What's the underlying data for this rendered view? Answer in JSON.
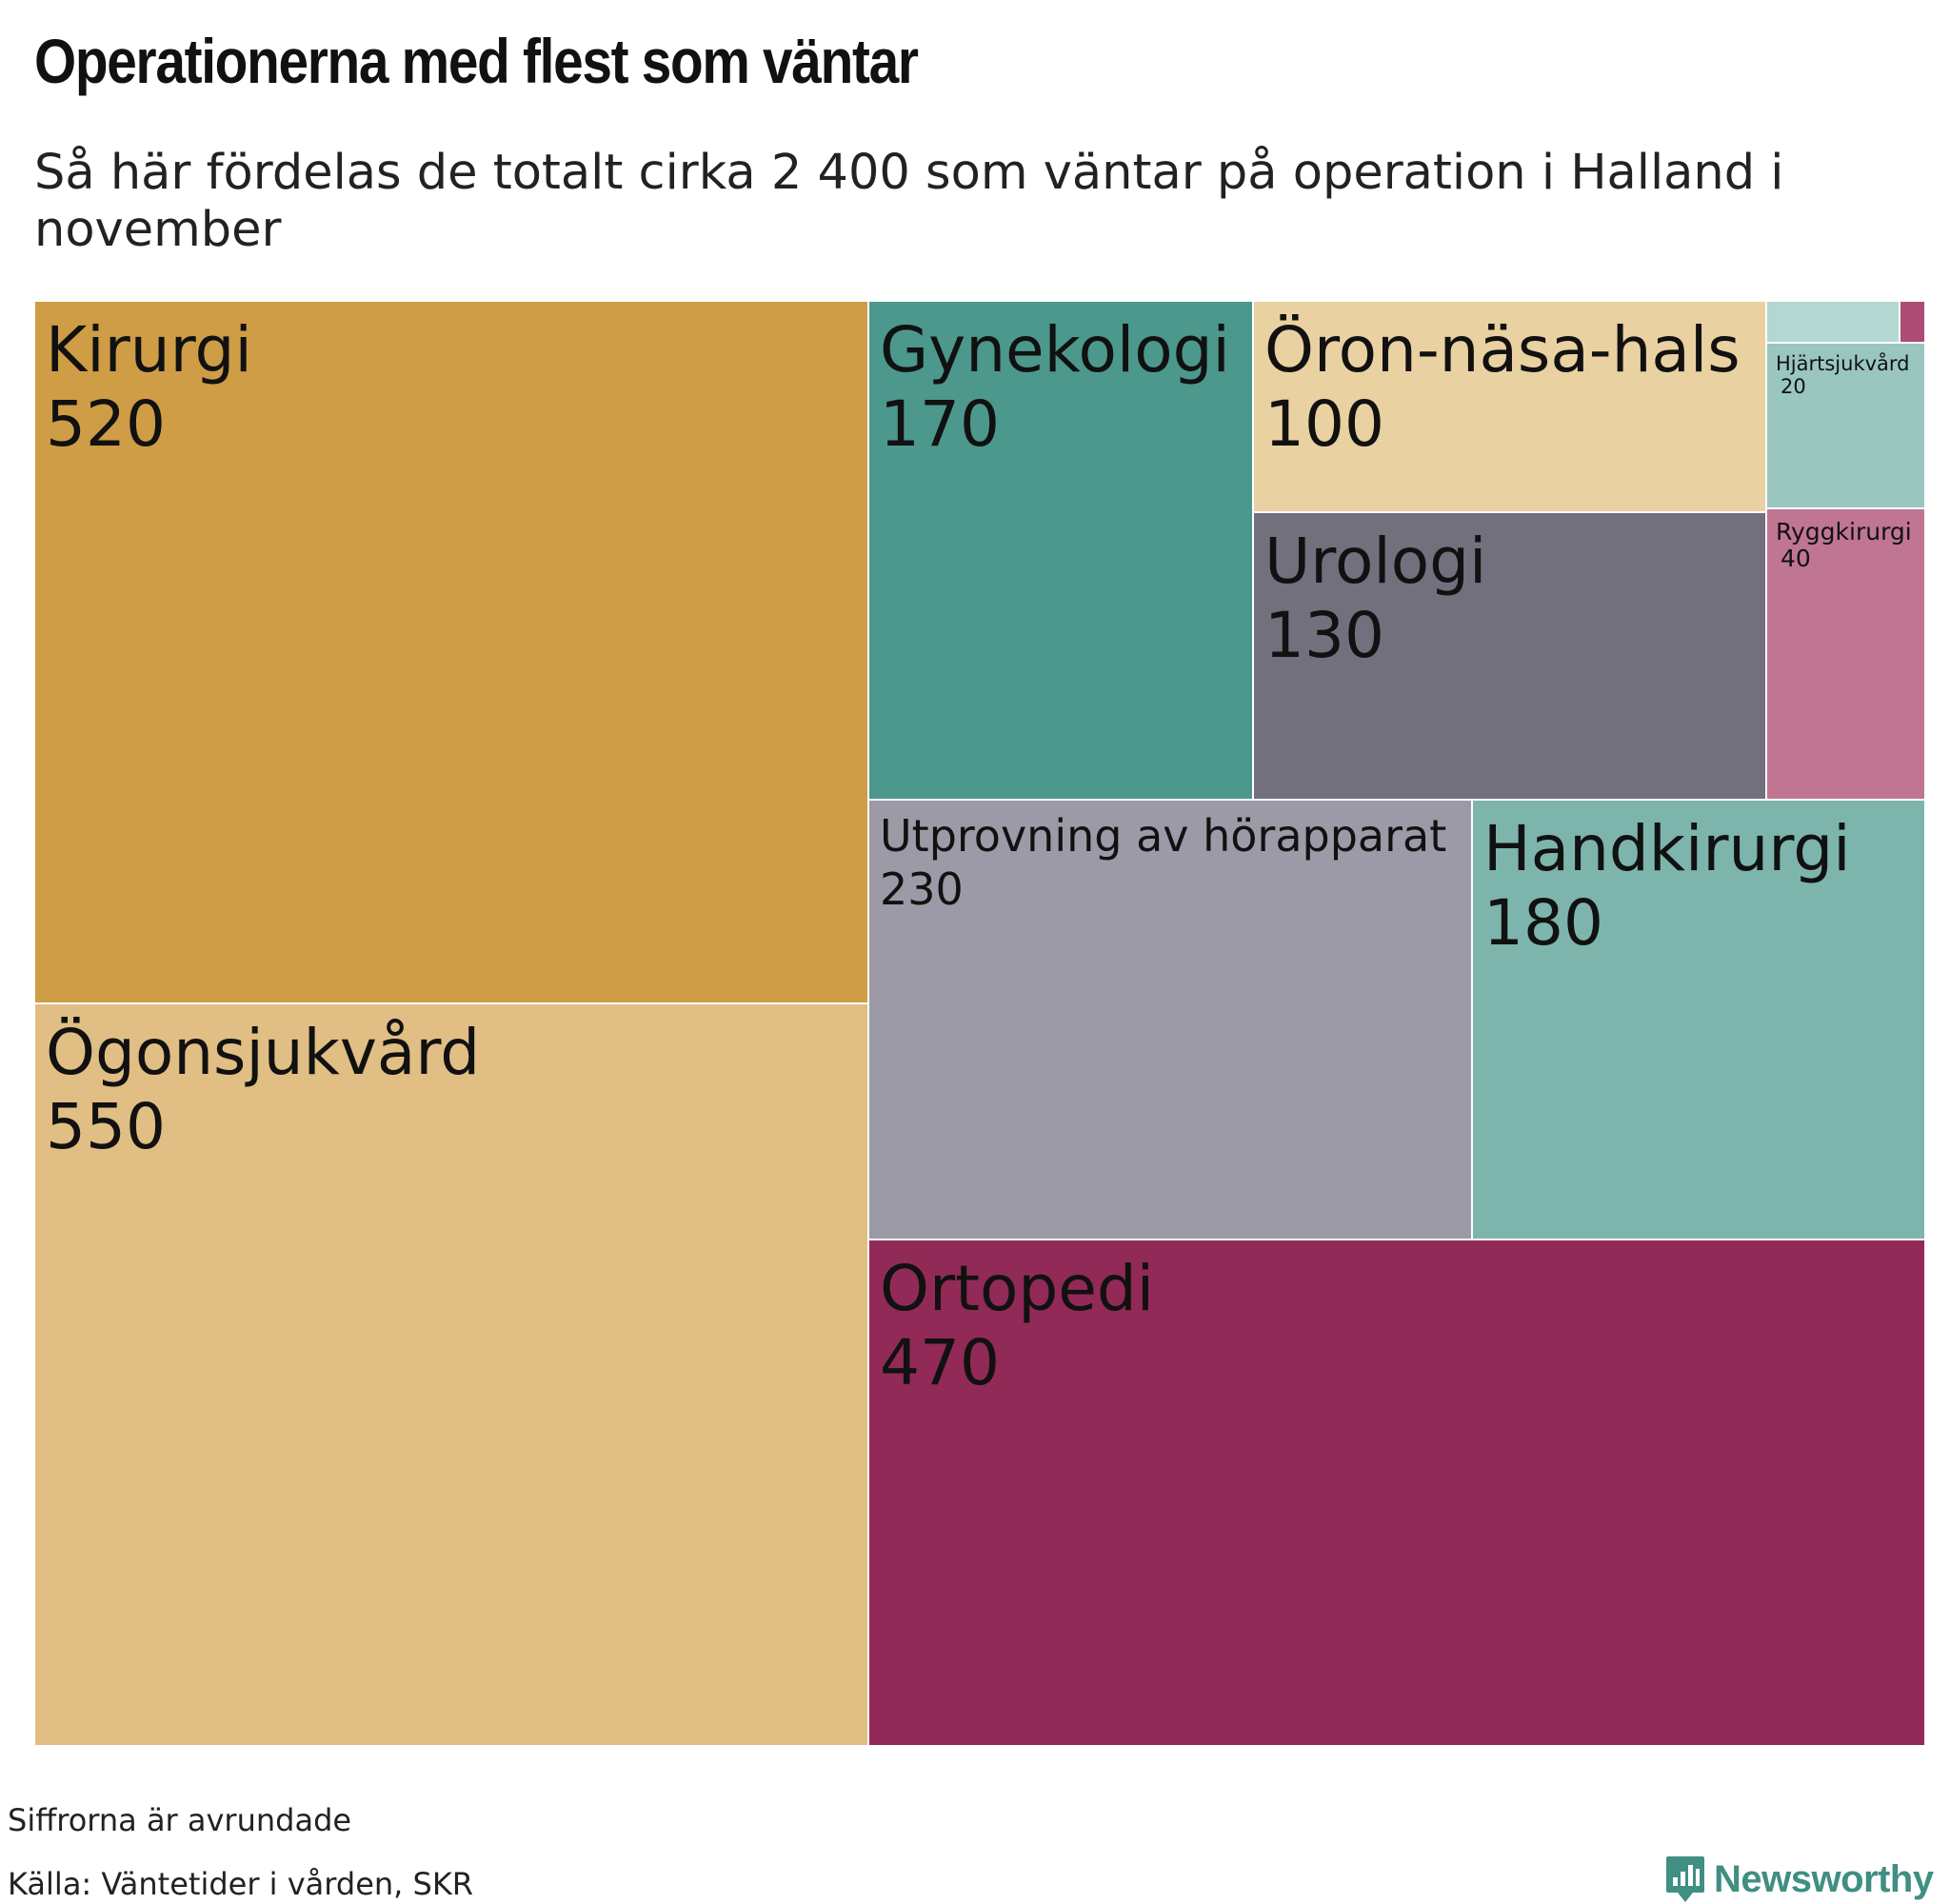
{
  "header": {
    "title": "Operationerna med flest som väntar",
    "subtitle": "Så här fördelas de totalt cirka 2 400 som väntar på operation i Halland i november"
  },
  "chart_data": {
    "type": "treemap",
    "items": [
      {
        "name": "Kirurgi",
        "value": 520,
        "color": "#cf9d45"
      },
      {
        "name": "Ögonsjukvård",
        "value": 550,
        "color": "#e1be83"
      },
      {
        "name": "Gynekologi",
        "value": 170,
        "color": "#4c988c"
      },
      {
        "name": "Öron-näsa-hals",
        "value": 100,
        "color": "#e9d1a2"
      },
      {
        "name": "Urologi",
        "value": 130,
        "color": "#72707c"
      },
      {
        "name": "Hjärtsjukvård",
        "value": 20,
        "color": "#9ac6c0"
      },
      {
        "name": "Ryggkirurgi",
        "value": 40,
        "color": "#c07593"
      },
      {
        "name": "Utprovning av hörapparat",
        "value": 230,
        "color": "#9c9aa6"
      },
      {
        "name": "Handkirurgi",
        "value": 180,
        "color": "#7db5ad"
      },
      {
        "name": "Ortopedi",
        "value": 470,
        "color": "#912a56"
      }
    ],
    "unlabeled_cells": [
      {
        "color": "#b3d8d2"
      },
      {
        "color": "#ad4c74"
      }
    ]
  },
  "footer": {
    "note": "Siffrorna är avrundade",
    "source": "Källa: Väntetider i vården, SKR",
    "brand": "Newsworthy",
    "brand_icon": "newsworthy-logo-icon",
    "brand_color": "#3f8f82"
  }
}
